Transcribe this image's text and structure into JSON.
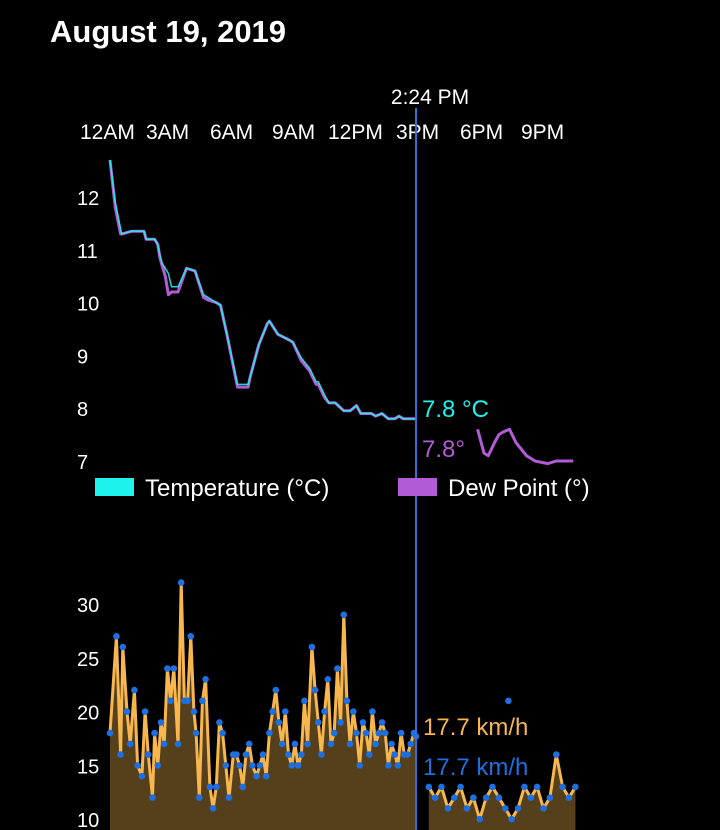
{
  "header": {
    "date": "August 19, 2019"
  },
  "cursor": {
    "time_label": "2:24 PM",
    "time_hours": 14.4
  },
  "colors": {
    "background": "#000000",
    "temperature": "#1ef2ec",
    "dew_point": "#b25bd6",
    "wind": "#f7b64e",
    "gust_points": "#1e6fe0",
    "cursor_line": "#2f6fd9"
  },
  "chart_data": [
    {
      "type": "line",
      "x_axis": {
        "unit": "hours",
        "range": [
          0,
          24
        ],
        "ticks": [
          0,
          3,
          6,
          9,
          12,
          15,
          18,
          21
        ],
        "tick_labels": [
          "12AM",
          "3AM",
          "6AM",
          "9AM",
          "12PM",
          "3PM",
          "6PM",
          "9PM"
        ]
      },
      "y_axis": {
        "range": [
          6.9,
          12.75
        ],
        "ticks": [
          7,
          8,
          9,
          10,
          11,
          12
        ],
        "tick_labels": [
          "12",
          "11",
          "10",
          "9",
          "8",
          "7"
        ]
      },
      "series": [
        {
          "name": "Temperature (°C)",
          "color": "#1ef2ec",
          "readout": "7.8 °C",
          "x": [
            0,
            0.25,
            0.5,
            0.55,
            1.0,
            1.6,
            1.7,
            2.1,
            2.25,
            2.35,
            2.45,
            2.6,
            2.75,
            2.9,
            3.2,
            3.6,
            4.0,
            4.4,
            4.6,
            5.0,
            5.2,
            5.5,
            6.0,
            6.1,
            6.5,
            6.6,
            7.0,
            7.4,
            7.5,
            7.9,
            8.4,
            8.6,
            9.0,
            9.4,
            9.7,
            9.8,
            10.1,
            10.3,
            10.6,
            11.0,
            11.3,
            11.6,
            11.8,
            12.3,
            12.5,
            12.8,
            13.1,
            13.4,
            13.6,
            13.8,
            14.4
          ],
          "y": [
            12.7,
            11.9,
            11.4,
            11.3,
            11.35,
            11.35,
            11.2,
            11.2,
            11.1,
            10.9,
            10.75,
            10.65,
            10.55,
            10.3,
            10.3,
            10.65,
            10.6,
            10.15,
            10.1,
            10.0,
            9.95,
            9.4,
            8.45,
            8.45,
            8.45,
            8.6,
            9.2,
            9.6,
            9.65,
            9.4,
            9.3,
            9.25,
            8.95,
            8.75,
            8.5,
            8.5,
            8.25,
            8.1,
            8.1,
            7.95,
            7.95,
            8.05,
            7.9,
            7.9,
            7.85,
            7.9,
            7.8,
            7.8,
            7.85,
            7.8,
            7.8
          ]
        },
        {
          "name": "Dew Point (°)",
          "color": "#b25bd6",
          "readout": "7.8°",
          "x": [
            0,
            0.25,
            0.5,
            0.55,
            1.0,
            1.6,
            1.7,
            2.1,
            2.25,
            2.35,
            2.45,
            2.6,
            2.75,
            2.9,
            3.2,
            3.6,
            4.0,
            4.4,
            4.6,
            5.0,
            5.2,
            5.5,
            6.0,
            6.1,
            6.5,
            6.6,
            7.0,
            7.4,
            7.5,
            7.9,
            8.4,
            8.6,
            9.0,
            9.4,
            9.7,
            9.8,
            10.1,
            10.3,
            10.6,
            11.0,
            11.3,
            11.6,
            11.8,
            12.3,
            12.5,
            12.8,
            13.1,
            13.4,
            13.6,
            13.8,
            14.4,
            null,
            17.3,
            17.6,
            17.8,
            18.1,
            18.3,
            18.5,
            18.8,
            19.1,
            19.6,
            20.0,
            20.6,
            21.0,
            21.8
          ],
          "y": [
            12.7,
            11.8,
            11.3,
            11.3,
            11.35,
            11.35,
            11.2,
            11.2,
            11.1,
            10.85,
            10.7,
            10.5,
            10.15,
            10.2,
            10.2,
            10.65,
            10.6,
            10.1,
            10.05,
            10.0,
            9.95,
            9.4,
            8.4,
            8.4,
            8.4,
            8.6,
            9.2,
            9.6,
            9.65,
            9.4,
            9.3,
            9.25,
            8.9,
            8.7,
            8.45,
            8.45,
            8.2,
            8.1,
            8.1,
            7.95,
            7.95,
            8.05,
            7.9,
            7.9,
            7.85,
            7.9,
            7.8,
            7.8,
            7.85,
            7.8,
            7.8,
            null,
            7.6,
            7.15,
            7.1,
            7.35,
            7.5,
            7.55,
            7.6,
            7.35,
            7.1,
            7.0,
            6.95,
            7.0,
            7.0
          ]
        }
      ],
      "legend": {
        "placement": "bottom",
        "entries": [
          "Temperature (°C)",
          "Dew Point (°)"
        ]
      }
    },
    {
      "type": "line",
      "x_axis": {
        "unit": "hours",
        "range": [
          0,
          24
        ]
      },
      "y_axis": {
        "range": [
          10,
          32.5
        ],
        "ticks": [
          10,
          15,
          20,
          25,
          30
        ],
        "tick_labels": [
          "10",
          "15",
          "20",
          "25",
          "30"
        ]
      },
      "series": [
        {
          "name": "wind",
          "color": "#f7b64e",
          "readout": "17.7 km/h",
          "x": [
            0,
            0.3,
            0.5,
            0.6,
            0.8,
            0.95,
            1.15,
            1.3,
            1.5,
            1.65,
            1.8,
            2.0,
            2.1,
            2.25,
            2.4,
            2.55,
            2.7,
            2.85,
            3.0,
            3.2,
            3.35,
            3.5,
            3.65,
            3.8,
            3.95,
            4.05,
            4.2,
            4.35,
            4.5,
            4.7,
            4.85,
            5.0,
            5.15,
            5.3,
            5.45,
            5.6,
            5.8,
            5.95,
            6.1,
            6.25,
            6.4,
            6.55,
            6.7,
            6.9,
            7.05,
            7.2,
            7.35,
            7.5,
            7.65,
            7.8,
            7.95,
            8.1,
            8.25,
            8.4,
            8.55,
            8.7,
            8.85,
            9.0,
            9.15,
            9.3,
            9.5,
            9.65,
            9.8,
            9.95,
            10.1,
            10.25,
            10.4,
            10.55,
            10.7,
            10.85,
            11.0,
            11.15,
            11.3,
            11.45,
            11.6,
            11.75,
            11.9,
            12.05,
            12.2,
            12.35,
            12.5,
            12.65,
            12.8,
            12.95,
            13.1,
            13.25,
            13.4,
            13.55,
            13.7,
            13.85,
            14.0,
            14.15,
            14.3,
            14.4,
            null,
            15.0,
            15.3,
            15.6,
            15.9,
            16.2,
            16.5,
            16.8,
            17.1,
            17.4,
            17.7,
            18.0,
            18.3,
            18.6,
            18.9,
            19.2,
            19.5,
            19.8,
            20.1,
            20.4,
            20.7,
            21.0,
            21.3,
            21.6,
            21.9
          ],
          "y": [
            18,
            27,
            16,
            26,
            20,
            17,
            22,
            15,
            14,
            20,
            16,
            12,
            18,
            15,
            19,
            17,
            24,
            21,
            24,
            17,
            32,
            21,
            21,
            27,
            20,
            18,
            12,
            21,
            23,
            13,
            11,
            13,
            19,
            18,
            15,
            12,
            16,
            16,
            15,
            13,
            16,
            17,
            15,
            14,
            15,
            16,
            14,
            18,
            20,
            22,
            19,
            17,
            20,
            16,
            15,
            17,
            15,
            16,
            21,
            17,
            26,
            22,
            19,
            16,
            20,
            23,
            17,
            18,
            24,
            19,
            29,
            21,
            17,
            20,
            18,
            15,
            19,
            18,
            16,
            20,
            17,
            18,
            19,
            18,
            15,
            17,
            16,
            15,
            18,
            16,
            16,
            17,
            18,
            17.7,
            null,
            13,
            12,
            13,
            11,
            12,
            13,
            11,
            12,
            10,
            12,
            13,
            12,
            11,
            10,
            11,
            13,
            12,
            13,
            11,
            12,
            16,
            13,
            12,
            13
          ]
        }
      ],
      "gust_readout": "17.7 km/h"
    }
  ],
  "legend": {
    "temperature_label": "Temperature (°C)",
    "dew_point_label": "Dew Point (°)"
  }
}
